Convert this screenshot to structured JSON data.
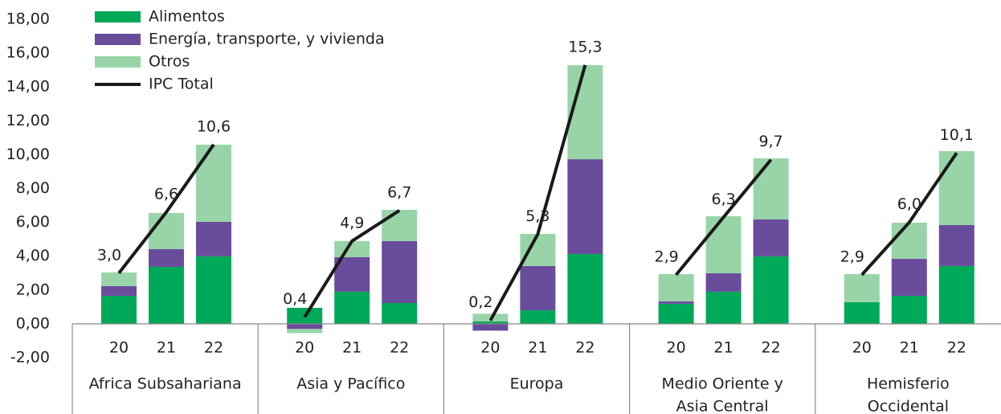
{
  "chart_data": {
    "type": "stacked-bar-line",
    "groups": [
      [
        "Africa Subsahariana"
      ],
      [
        "Asia y Pacífico"
      ],
      [
        "Europa"
      ],
      [
        "Medio Oriente y",
        "Asia Central"
      ],
      [
        "Hemisferio",
        "Occidental"
      ]
    ],
    "categories": [
      "20",
      "21",
      "22",
      "20",
      "21",
      "22",
      "20",
      "21",
      "22",
      "20",
      "21",
      "22",
      "20",
      "21",
      "22"
    ],
    "ylim": [
      -2,
      18
    ],
    "yticks": [
      {
        "value": -2,
        "label": "-2,00"
      },
      {
        "value": 0,
        "label": "0,00"
      },
      {
        "value": 2,
        "label": "2,00"
      },
      {
        "value": 4,
        "label": "4,00"
      },
      {
        "value": 6,
        "label": "6,00"
      },
      {
        "value": 8,
        "label": "8,00"
      },
      {
        "value": 10,
        "label": "10,00"
      },
      {
        "value": 12,
        "label": "12,00"
      },
      {
        "value": 14,
        "label": "14,00"
      },
      {
        "value": 16,
        "label": "16,00"
      },
      {
        "value": 18,
        "label": "18,00"
      }
    ],
    "legend": "top-left",
    "series": [
      {
        "name": "Alimentos",
        "kind": "bar",
        "color": "#00a859",
        "values": [
          1.66,
          3.37,
          3.99,
          0.95,
          1.9,
          1.23,
          0.15,
          0.8,
          4.13,
          1.19,
          1.9,
          3.99,
          1.28,
          1.66,
          3.42
        ]
      },
      {
        "name": "Energía, transporte, y vivienda",
        "kind": "bar",
        "color": "#6a4c9c",
        "values": [
          0.57,
          1.05,
          2.04,
          -0.3,
          2.04,
          3.66,
          -0.4,
          2.62,
          5.6,
          0.14,
          1.09,
          2.18,
          0,
          2.19,
          2.42
        ]
      },
      {
        "name": "Otros",
        "kind": "bar",
        "color": "#98d4a8",
        "values": [
          0.81,
          2.13,
          4.56,
          -0.25,
          0.96,
          1.85,
          0.45,
          1.9,
          5.56,
          1.61,
          3.37,
          3.61,
          1.66,
          2.13,
          4.37
        ]
      },
      {
        "name": "IPC Total",
        "kind": "line",
        "color": "#1a1a1a",
        "values": [
          3.0,
          6.6,
          10.6,
          0.4,
          4.9,
          6.7,
          0.2,
          5.3,
          15.3,
          2.9,
          6.3,
          9.7,
          2.9,
          6.0,
          10.1
        ],
        "value_labels": [
          "3,0",
          "6,6",
          "10,6",
          "0,4",
          "4,9",
          "6,7",
          "0,2",
          "5,3",
          "15,3",
          "2,9",
          "6,3",
          "9,7",
          "2,9",
          "6,0",
          "10,1"
        ]
      }
    ]
  }
}
